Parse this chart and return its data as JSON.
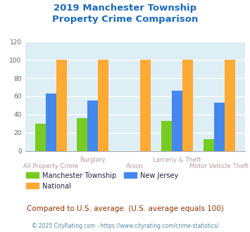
{
  "title": "2019 Manchester Township\nProperty Crime Comparison",
  "title_color": "#1a6bbf",
  "categories": [
    "All Property Crime",
    "Burglary",
    "Arson",
    "Larceny & Theft",
    "Motor Vehicle Theft"
  ],
  "manchester": [
    30,
    36,
    0,
    33,
    13
  ],
  "new_jersey": [
    63,
    55,
    0,
    66,
    53
  ],
  "national": [
    100,
    100,
    100,
    100,
    100
  ],
  "manchester_color": "#77cc22",
  "new_jersey_color": "#4488ee",
  "national_color": "#ffaa33",
  "ylim": [
    0,
    120
  ],
  "yticks": [
    0,
    20,
    40,
    60,
    80,
    100,
    120
  ],
  "chart_bg": "#ddeef5",
  "grid_color": "#ffffff",
  "xlabel_color": "#bb9999",
  "legend_label_color": "#222244",
  "footer_text": "Compared to U.S. average. (U.S. average equals 100)",
  "footer_color": "#993300",
  "credit_text": "© 2025 CityRating.com - https://www.cityrating.com/crime-statistics/",
  "credit_color": "#5588aa",
  "bar_width": 0.25
}
